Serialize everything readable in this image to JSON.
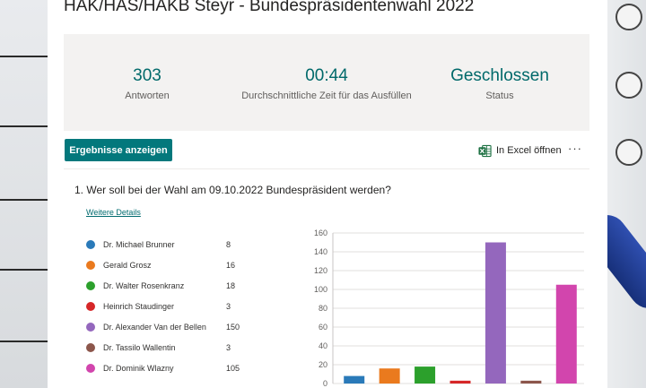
{
  "form": {
    "title": "HAK/HAS/HAKB Steyr - Bundespräsidentenwahl 2022"
  },
  "summary": {
    "responses": {
      "value": "303",
      "label": "Antworten"
    },
    "avg_time": {
      "value": "00:44",
      "label": "Durchschnittliche Zeit für das Ausfüllen"
    },
    "status": {
      "value": "Geschlossen",
      "label": "Status"
    }
  },
  "toolbar": {
    "results_label": "Ergebnisse anzeigen",
    "excel_label": "In Excel öffnen",
    "more_label": "···",
    "excel_icon": "excel-icon"
  },
  "question": {
    "text": "1.  Wer soll bei der Wahl am 09.10.2022 Bundespräsident werden?",
    "details_label": "Weitere Details"
  },
  "legend": [
    {
      "name": "Dr. Michael Brunner",
      "count": "8",
      "color": "#2a7ab9"
    },
    {
      "name": "Gerald Grosz",
      "count": "16",
      "color": "#ea7a1e"
    },
    {
      "name": "Dr. Walter Rosenkranz",
      "count": "18",
      "color": "#2ca02c"
    },
    {
      "name": "Heinrich Staudinger",
      "count": "3",
      "color": "#d62728"
    },
    {
      "name": "Dr. Alexander Van der Bellen",
      "count": "150",
      "color": "#9467bd"
    },
    {
      "name": "Dr. Tassilo Wallentin",
      "count": "3",
      "color": "#8c564b"
    },
    {
      "name": "Dr. Dominik Wlazny",
      "count": "105",
      "color": "#d245ad"
    }
  ],
  "chart_data": {
    "type": "bar",
    "categories": [
      "Dr. Michael Brunner",
      "Gerald Grosz",
      "Dr. Walter Rosenkranz",
      "Heinrich Staudinger",
      "Dr. Alexander Van der Bellen",
      "Dr. Tassilo Wallentin",
      "Dr. Dominik Wlazny"
    ],
    "values": [
      8,
      16,
      18,
      3,
      150,
      3,
      105
    ],
    "colors": [
      "#2a7ab9",
      "#ea7a1e",
      "#2ca02c",
      "#d62728",
      "#9467bd",
      "#8c564b",
      "#d245ad"
    ],
    "ylim": [
      0,
      160
    ],
    "yticks": [
      "0",
      "20",
      "40",
      "60",
      "80",
      "100",
      "120",
      "140",
      "160"
    ],
    "grid": true,
    "title": "",
    "xlabel": "",
    "ylabel": ""
  }
}
